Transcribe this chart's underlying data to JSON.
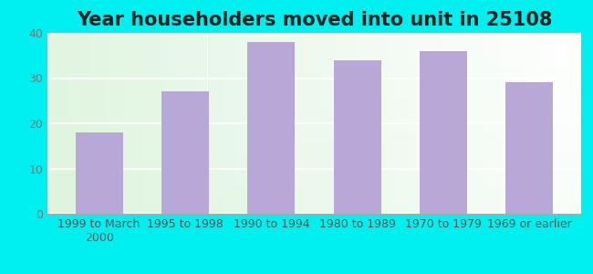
{
  "title": "Year householders moved into unit in 25108",
  "categories": [
    "1999 to March\n2000",
    "1995 to 1998",
    "1990 to 1994",
    "1980 to 1989",
    "1970 to 1979",
    "1969 or earlier"
  ],
  "values": [
    18,
    27,
    38,
    34,
    36,
    29
  ],
  "bar_color": "#b8a8d8",
  "ylim": [
    0,
    40
  ],
  "yticks": [
    0,
    10,
    20,
    30,
    40
  ],
  "background_outer": "#00efef",
  "title_fontsize": 15,
  "tick_fontsize": 9,
  "grid_color": "#ffffff",
  "title_color": "#222222"
}
